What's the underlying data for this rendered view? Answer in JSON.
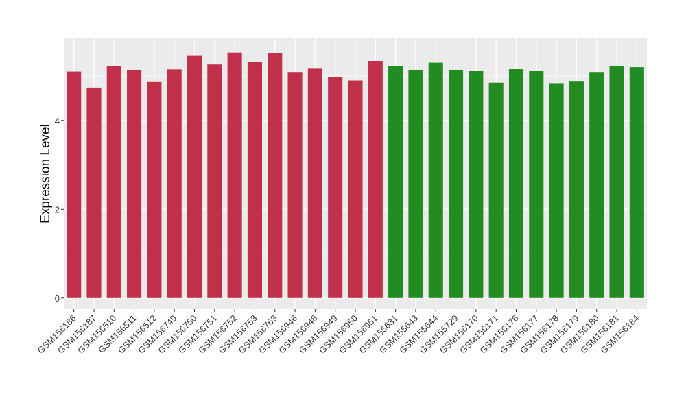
{
  "chart_data": {
    "type": "bar",
    "ylabel": "Expression Level",
    "xlabel": "",
    "ylim": [
      -0.25,
      5.85
    ],
    "yticks": [
      0,
      2,
      4
    ],
    "grid": true,
    "legend": "none",
    "panel_color": "#EBEBEB",
    "gridline_color": "#FFFFFF",
    "categories": [
      "GSM156186",
      "GSM156187",
      "GSM156510",
      "GSM156511",
      "GSM156512",
      "GSM156749",
      "GSM156750",
      "GSM156751",
      "GSM156752",
      "GSM156753",
      "GSM156763",
      "GSM156946",
      "GSM156948",
      "GSM156949",
      "GSM156950",
      "GSM156951",
      "GSM155631",
      "GSM155643",
      "GSM155644",
      "GSM155729",
      "GSM156170",
      "GSM156171",
      "GSM156176",
      "GSM156177",
      "GSM156178",
      "GSM156179",
      "GSM156180",
      "GSM156181",
      "GSM156184"
    ],
    "values": [
      5.1,
      4.74,
      5.23,
      5.14,
      4.88,
      5.15,
      5.47,
      5.26,
      5.53,
      5.32,
      5.51,
      5.09,
      5.18,
      4.97,
      4.9,
      5.34,
      5.22,
      5.14,
      5.3,
      5.14,
      5.12,
      4.85,
      5.16,
      5.11,
      4.84,
      4.89,
      5.09,
      5.23,
      5.2
    ],
    "colors": [
      "#C0304A",
      "#C0304A",
      "#C0304A",
      "#C0304A",
      "#C0304A",
      "#C0304A",
      "#C0304A",
      "#C0304A",
      "#C0304A",
      "#C0304A",
      "#C0304A",
      "#C0304A",
      "#C0304A",
      "#C0304A",
      "#C0304A",
      "#C0304A",
      "#228B22",
      "#228B22",
      "#228B22",
      "#228B22",
      "#228B22",
      "#228B22",
      "#228B22",
      "#228B22",
      "#228B22",
      "#228B22",
      "#228B22",
      "#228B22",
      "#228B22"
    ]
  }
}
